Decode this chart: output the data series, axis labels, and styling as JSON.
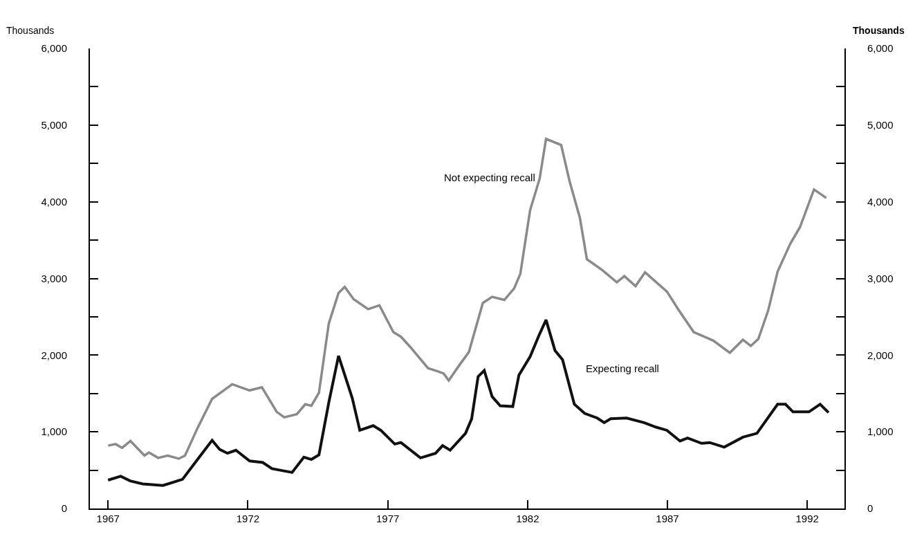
{
  "chart_data": {
    "type": "line",
    "ylabel": "Thousands",
    "y2label": "Thousands",
    "xlim": [
      1966.35,
      1993.33
    ],
    "xticks": [
      1967,
      1972,
      1977,
      1982,
      1987,
      1992
    ],
    "ylim": [
      0,
      6000
    ],
    "yticks": [
      0,
      {
        "value": 500,
        "label": null
      },
      {
        "value": 1000,
        "label": "1,000"
      },
      {
        "value": 1500,
        "label": null
      },
      {
        "value": 2000,
        "label": "2,000"
      },
      {
        "value": 2500,
        "label": null
      },
      {
        "value": 3000,
        "label": "3,000"
      },
      {
        "value": 3500,
        "label": null
      },
      {
        "value": 4000,
        "label": "4,000"
      },
      {
        "value": 4500,
        "label": null
      },
      {
        "value": 5000,
        "label": "5,000"
      },
      {
        "value": 5500,
        "label": null
      },
      {
        "value": 6000,
        "label": "6,000"
      }
    ],
    "y2lim": [
      0,
      6000
    ],
    "y2ticks": [
      0,
      {
        "value": 500,
        "label": null
      },
      {
        "value": 1000,
        "label": "1,000"
      },
      {
        "value": 1500,
        "label": null
      },
      {
        "value": 2000,
        "label": "2,000"
      },
      {
        "value": 2500,
        "label": null
      },
      {
        "value": 3000,
        "label": "3,000"
      },
      {
        "value": 3500,
        "label": null
      },
      {
        "value": 4000,
        "label": "4,000"
      },
      {
        "value": 4500,
        "label": null
      },
      {
        "value": 5000,
        "label": "5,000"
      },
      {
        "value": 5500,
        "label": null
      },
      {
        "value": 6000,
        "label": "6,000"
      }
    ],
    "legend": false,
    "marker": "none",
    "line_style": "solid",
    "series": [
      {
        "name": "Not expecting recall",
        "color": "#8a8a8a",
        "x": [
          1967.0,
          1967.27,
          1967.5,
          1967.8,
          1968.3,
          1968.46,
          1968.79,
          1969.13,
          1969.53,
          1969.75,
          1970.2,
          1970.72,
          1971.44,
          1972.06,
          1972.5,
          1973.03,
          1973.3,
          1973.75,
          1974.05,
          1974.27,
          1974.54,
          1974.89,
          1975.24,
          1975.46,
          1975.78,
          1976.3,
          1976.7,
          1977.2,
          1977.47,
          1977.82,
          1978.44,
          1978.78,
          1979.0,
          1979.18,
          1979.58,
          1979.9,
          1980.4,
          1980.73,
          1981.17,
          1981.52,
          1981.74,
          1982.09,
          1982.43,
          1982.66,
          1983.2,
          1983.5,
          1983.87,
          1984.12,
          1984.67,
          1985.19,
          1985.46,
          1985.86,
          1986.2,
          1986.98,
          1987.4,
          1987.94,
          1988.64,
          1989.23,
          1989.7,
          1989.98,
          1990.25,
          1990.6,
          1990.94,
          1991.39,
          1991.74,
          1992.24,
          1992.68
        ],
        "values": [
          820,
          840,
          790,
          880,
          690,
          730,
          660,
          690,
          650,
          690,
          1050,
          1430,
          1620,
          1540,
          1580,
          1260,
          1190,
          1230,
          1360,
          1340,
          1510,
          2410,
          2810,
          2890,
          2730,
          2600,
          2650,
          2300,
          2240,
          2100,
          1830,
          1790,
          1760,
          1670,
          1880,
          2040,
          2680,
          2760,
          2720,
          2870,
          3060,
          3890,
          4300,
          4820,
          4740,
          4270,
          3790,
          3250,
          3110,
          2950,
          3030,
          2900,
          3080,
          2830,
          2590,
          2300,
          2190,
          2030,
          2200,
          2120,
          2210,
          2580,
          3090,
          3450,
          3670,
          4160,
          4050
        ]
      },
      {
        "name": "Expecting recall",
        "color": "#111111",
        "x": [
          1967.0,
          1967.45,
          1967.79,
          1968.24,
          1968.96,
          1969.66,
          1970.2,
          1970.72,
          1970.99,
          1971.27,
          1971.57,
          1972.06,
          1972.53,
          1972.86,
          1973.58,
          1974.0,
          1974.27,
          1974.54,
          1974.89,
          1975.24,
          1975.73,
          1976.0,
          1976.48,
          1976.75,
          1977.25,
          1977.47,
          1978.17,
          1978.71,
          1978.96,
          1979.23,
          1979.78,
          1980.0,
          1980.23,
          1980.45,
          1980.73,
          1981.02,
          1981.47,
          1981.69,
          1982.09,
          1982.41,
          1982.66,
          1982.98,
          1983.25,
          1983.67,
          1984.04,
          1984.49,
          1984.74,
          1984.97,
          1985.54,
          1986.16,
          1986.6,
          1986.98,
          1987.45,
          1987.72,
          1988.22,
          1988.51,
          1989.03,
          1989.7,
          1990.2,
          1990.94,
          1991.22,
          1991.49,
          1992.06,
          1992.46,
          1992.76
        ],
        "values": [
          370,
          420,
          360,
          320,
          300,
          380,
          640,
          890,
          770,
          720,
          760,
          620,
          600,
          520,
          470,
          670,
          640,
          700,
          1380,
          1990,
          1440,
          1020,
          1080,
          1020,
          840,
          860,
          660,
          720,
          820,
          760,
          980,
          1170,
          1720,
          1800,
          1460,
          1340,
          1330,
          1740,
          1980,
          2260,
          2460,
          2060,
          1940,
          1360,
          1240,
          1180,
          1120,
          1170,
          1180,
          1120,
          1060,
          1020,
          880,
          920,
          850,
          860,
          800,
          930,
          980,
          1360,
          1360,
          1260,
          1260,
          1360,
          1250
        ]
      }
    ]
  }
}
